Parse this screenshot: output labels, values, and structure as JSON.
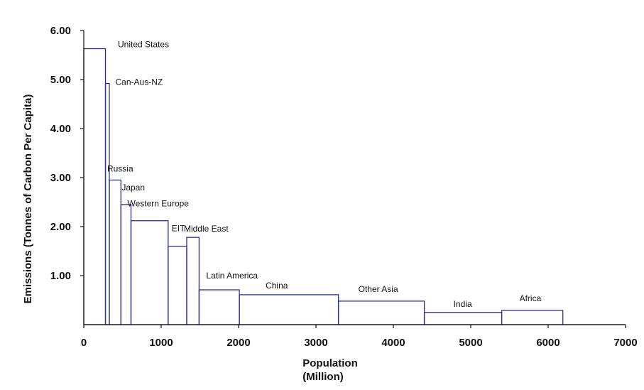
{
  "chart_data": {
    "type": "bar",
    "variant": "variable-width",
    "xlabel_line1": "Population",
    "xlabel_line2": "(Million)",
    "ylabel": "Emissions (Tonnes of Carbon Per Capita)",
    "xlim": [
      0,
      7000
    ],
    "ylim": [
      0,
      6
    ],
    "xticks": [
      0,
      1000,
      2000,
      3000,
      4000,
      5000,
      6000,
      7000
    ],
    "xtick_labels": [
      "0",
      "1000",
      "2000",
      "3000",
      "4000",
      "5000",
      "6000",
      "7000"
    ],
    "yticks": [
      1,
      2,
      3,
      4,
      5,
      6
    ],
    "ytick_labels": [
      "1.00",
      "2.00",
      "3.00",
      "4.00",
      "5.00",
      "6.00"
    ],
    "series": [
      {
        "name": "United States",
        "x_start": 0,
        "x_end": 280,
        "value": 5.63
      },
      {
        "name": "Can-Aus-NZ",
        "x_start": 280,
        "x_end": 330,
        "value": 4.92
      },
      {
        "name": "Russia",
        "x_start": 330,
        "x_end": 480,
        "value": 2.95
      },
      {
        "name": "Japan",
        "x_start": 480,
        "x_end": 610,
        "value": 2.45
      },
      {
        "name": "Western Europe",
        "x_start": 610,
        "x_end": 1090,
        "value": 2.12
      },
      {
        "name": "EIT",
        "x_start": 1090,
        "x_end": 1330,
        "value": 1.6
      },
      {
        "name": "Middle East",
        "x_start": 1330,
        "x_end": 1490,
        "value": 1.78
      },
      {
        "name": "Latin America",
        "x_start": 1490,
        "x_end": 2010,
        "value": 0.71
      },
      {
        "name": "China",
        "x_start": 2010,
        "x_end": 3290,
        "value": 0.61
      },
      {
        "name": "Other Asia",
        "x_start": 3290,
        "x_end": 4400,
        "value": 0.48
      },
      {
        "name": "India",
        "x_start": 4400,
        "x_end": 5400,
        "value": 0.25
      },
      {
        "name": "Africa",
        "x_start": 5400,
        "x_end": 6190,
        "value": 0.29
      }
    ],
    "colors": {
      "bar_stroke": "#2b2f8f",
      "axis": "#111111"
    }
  }
}
